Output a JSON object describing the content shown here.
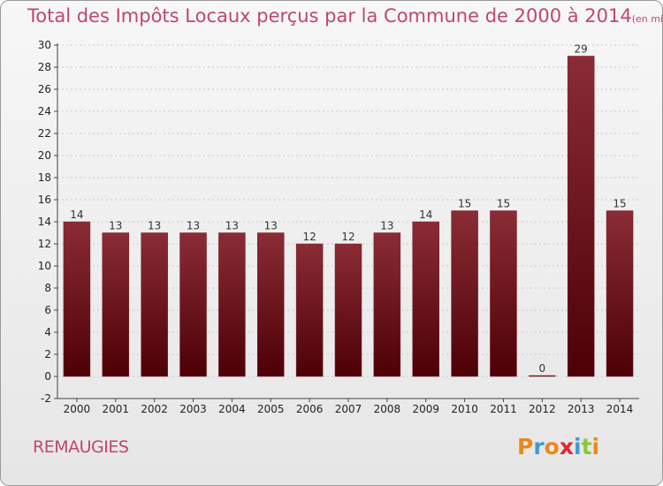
{
  "page": {
    "title": "Total des Impôts Locaux perçus par la Commune de 2000 à 2014",
    "unit": "(en milliers d'€)",
    "commune": "REMAUGIES",
    "logo": "Proxiti"
  },
  "chart_data": {
    "type": "bar",
    "title": "Total des Impôts Locaux perçus par la Commune de 2000 à 2014",
    "subtitle": "(en milliers d'€)",
    "categories": [
      "2000",
      "2001",
      "2002",
      "2003",
      "2004",
      "2005",
      "2006",
      "2007",
      "2008",
      "2009",
      "2010",
      "2011",
      "2012",
      "2013",
      "2014"
    ],
    "values": [
      14,
      13,
      13,
      13,
      13,
      13,
      12,
      12,
      13,
      14,
      15,
      15,
      0,
      29,
      15
    ],
    "ylim": [
      -2,
      30
    ],
    "yticks": [
      -2,
      0,
      2,
      4,
      6,
      8,
      10,
      12,
      14,
      16,
      18,
      20,
      22,
      24,
      26,
      28,
      30
    ],
    "grid": true,
    "colors": {
      "bar": "#7a1a24",
      "bar_dark": "#4d0006",
      "title": "#c0476a"
    },
    "logo_colors": [
      "#e8891a",
      "#3a9bd6",
      "#e8891a",
      "#e2262c",
      "#3a9bd6",
      "#8dc63f",
      "#e8891a"
    ]
  }
}
